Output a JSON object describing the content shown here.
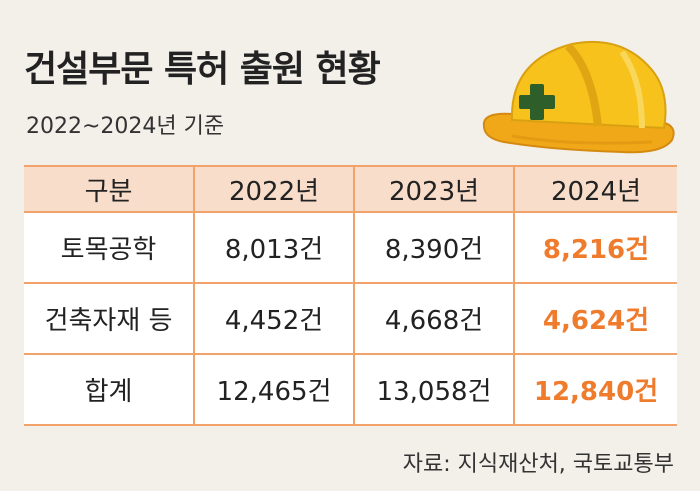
{
  "title": "건설부문 특허 출원 현황",
  "subtitle": "2022~2024년 기준",
  "table": {
    "headers": [
      "구분",
      "2022년",
      "2023년",
      "2024년"
    ],
    "rows": [
      {
        "label": "토목공학",
        "v2022": "8,013건",
        "v2023": "8,390건",
        "v2024": "8,216건"
      },
      {
        "label": "건축자재 등",
        "v2022": "4,452건",
        "v2023": "4,668건",
        "v2024": "4,624건"
      },
      {
        "label": "합계",
        "v2022": "12,465건",
        "v2023": "13,058건",
        "v2024": "12,840건"
      }
    ]
  },
  "source": "자료: 지식재산처, 국토교통부",
  "colors": {
    "accent": "#ef7b2d",
    "header_bg": "#f8ddca",
    "border": "#f2a36b",
    "background": "#f3efe9",
    "helmet": "#f6c21b"
  },
  "illustration": "hard-hat-icon"
}
